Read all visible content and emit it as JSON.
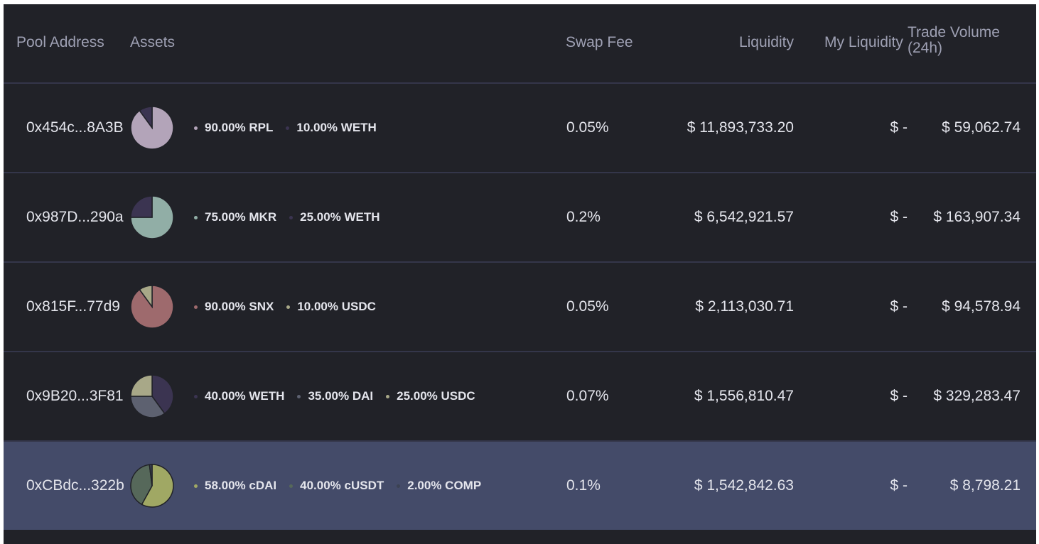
{
  "header": {
    "pool_address": "Pool Address",
    "assets": "Assets",
    "swap_fee": "Swap Fee",
    "liquidity": "Liquidity",
    "my_liquidity": "My Liquidity",
    "trade_volume": "Trade Volume (24h)"
  },
  "rows": [
    {
      "address": "0x454c...8A3B",
      "assets": [
        {
          "label": "90.00% RPL",
          "percent": 90,
          "color": "#b3a4b9"
        },
        {
          "label": "10.00% WETH",
          "percent": 10,
          "color": "#3b3451"
        }
      ],
      "swap_fee": "0.05%",
      "liquidity": "$ 11,893,733.20",
      "my_liquidity": "$ -",
      "trade_volume": "$ 59,062.74"
    },
    {
      "address": "0x987D...290a",
      "assets": [
        {
          "label": "75.00% MKR",
          "percent": 75,
          "color": "#91aea6"
        },
        {
          "label": "25.00% WETH",
          "percent": 25,
          "color": "#3b3451"
        }
      ],
      "swap_fee": "0.2%",
      "liquidity": "$ 6,542,921.57",
      "my_liquidity": "$ -",
      "trade_volume": "$ 163,907.34"
    },
    {
      "address": "0x815F...77d9",
      "assets": [
        {
          "label": "90.00% SNX",
          "percent": 90,
          "color": "#9e6a6d"
        },
        {
          "label": "10.00% USDC",
          "percent": 10,
          "color": "#a8a888"
        }
      ],
      "swap_fee": "0.05%",
      "liquidity": "$ 2,113,030.71",
      "my_liquidity": "$ -",
      "trade_volume": "$ 94,578.94"
    },
    {
      "address": "0x9B20...3F81",
      "assets": [
        {
          "label": "40.00% WETH",
          "percent": 40,
          "color": "#3b3451"
        },
        {
          "label": "35.00% DAI",
          "percent": 35,
          "color": "#5d6170"
        },
        {
          "label": "25.00% USDC",
          "percent": 25,
          "color": "#a8a888"
        }
      ],
      "swap_fee": "0.07%",
      "liquidity": "$ 1,556,810.47",
      "my_liquidity": "$ -",
      "trade_volume": "$ 329,283.47"
    },
    {
      "address": "0xCBdc...322b",
      "assets": [
        {
          "label": "58.00% cDAI",
          "percent": 58,
          "color": "#a0a864"
        },
        {
          "label": "40.00% cUSDT",
          "percent": 40,
          "color": "#56685a"
        },
        {
          "label": "2.00% COMP",
          "percent": 2,
          "color": "#3c4253"
        }
      ],
      "swap_fee": "0.1%",
      "liquidity": "$ 1,542,842.63",
      "my_liquidity": "$ -",
      "trade_volume": "$ 8,798.21",
      "highlighted": true
    }
  ]
}
